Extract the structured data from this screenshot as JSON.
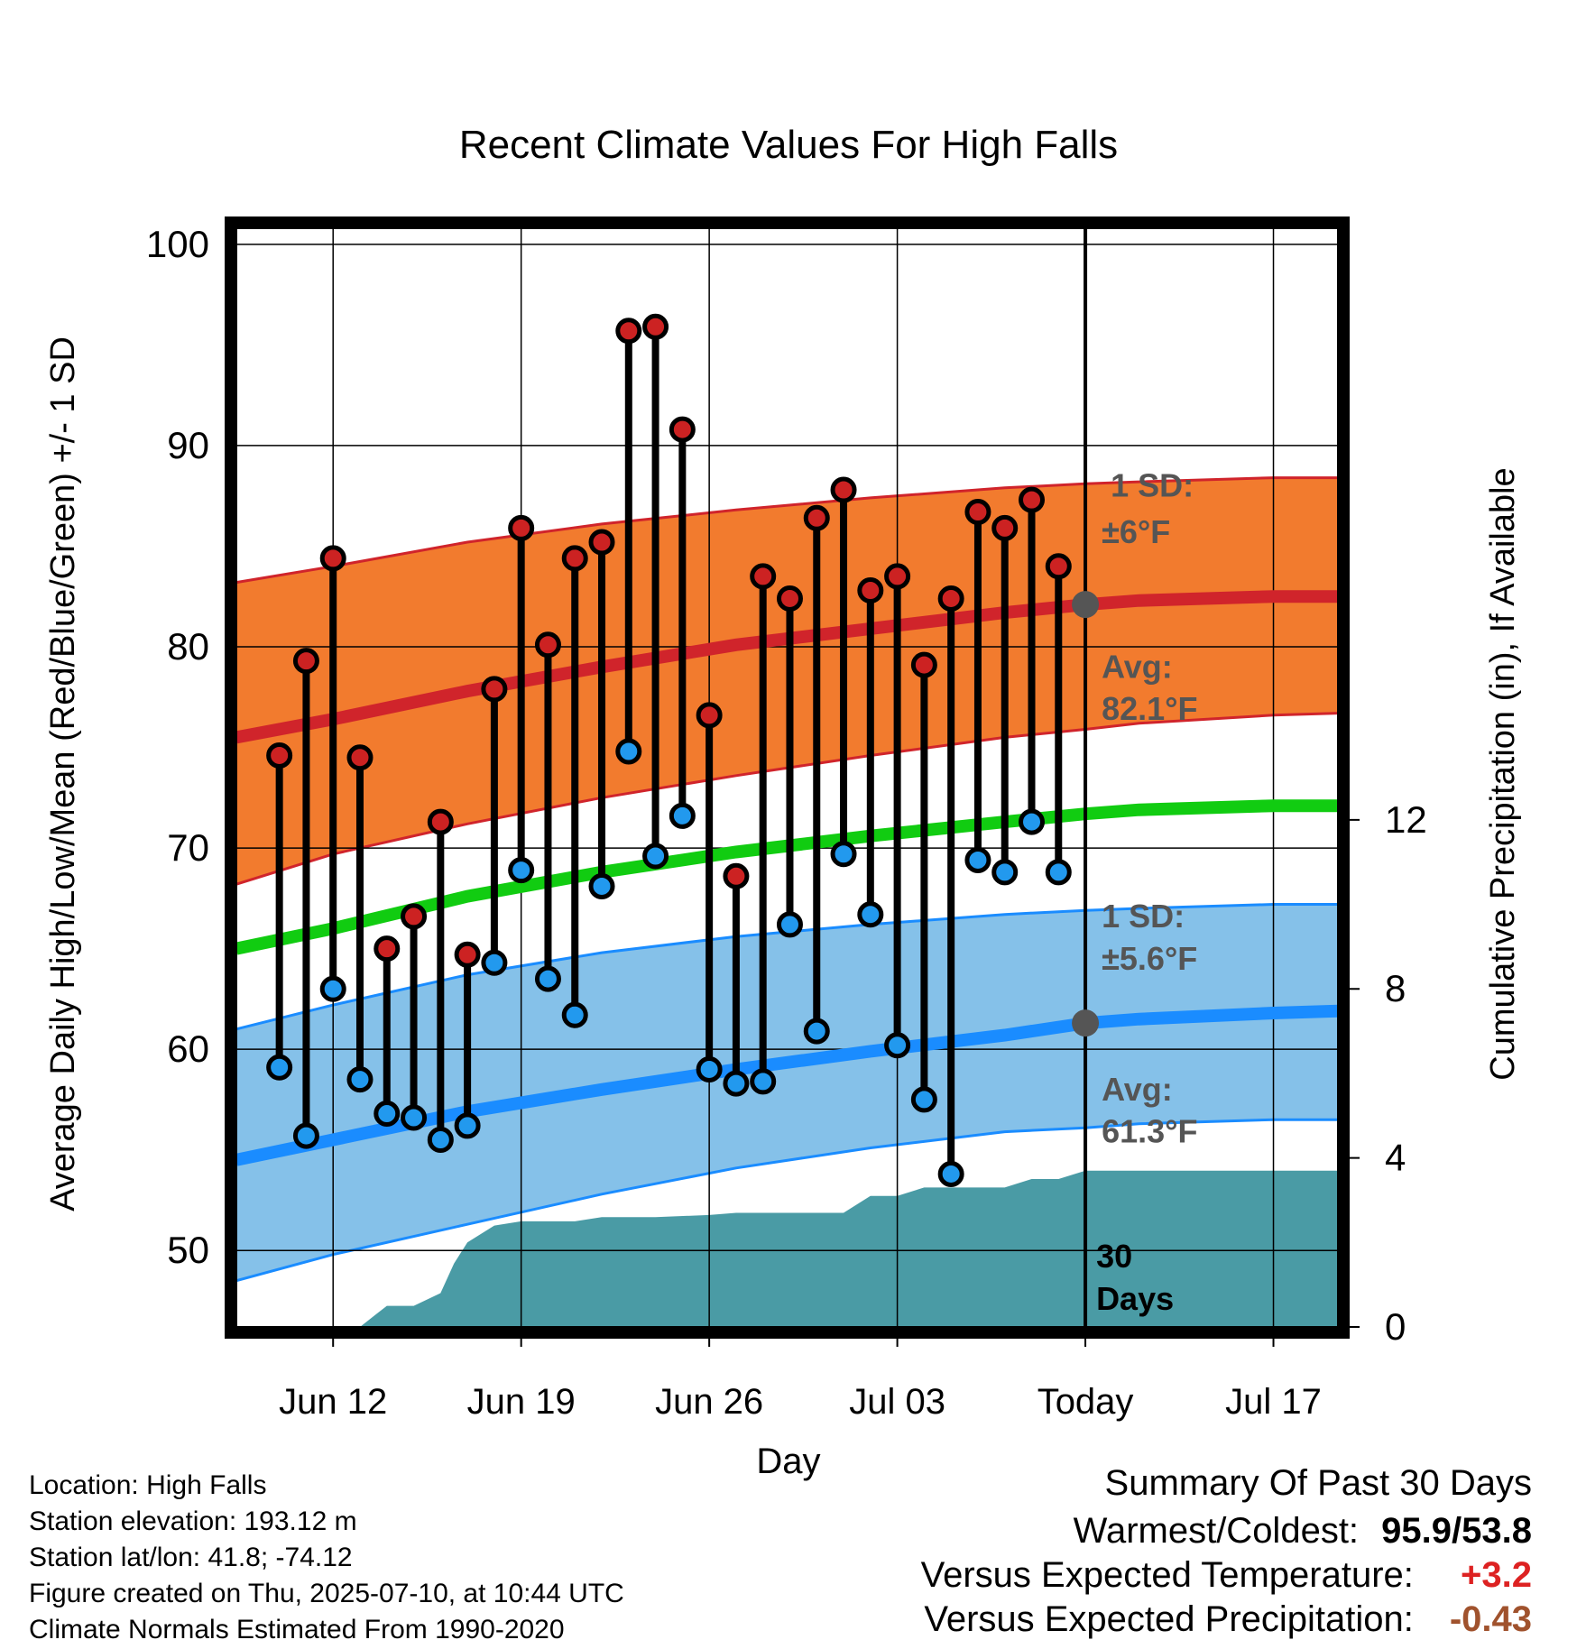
{
  "chart_data": {
    "type": "line",
    "title": "Recent Climate Values For High Falls",
    "xlabel": "Day",
    "ylabel": "Average Daily High/Low/Mean (Red/Blue/Green) +/- 1 SD",
    "y2label": "Cumulative Precipitation (in), If Available",
    "ylim": [
      46.2,
      100.8
    ],
    "y2lim": [
      0,
      26
    ],
    "xlim": [
      -3.6,
      37.4
    ],
    "yticks": [
      50,
      60,
      70,
      80,
      90,
      100
    ],
    "y2ticks": [
      0,
      4,
      8,
      12
    ],
    "xticks": [
      {
        "x": 0,
        "label": "Jun 12"
      },
      {
        "x": 7,
        "label": "Jun 19"
      },
      {
        "x": 14,
        "label": "Jun 26"
      },
      {
        "x": 21,
        "label": "Jul 03"
      },
      {
        "x": 28,
        "label": "Today"
      },
      {
        "x": 35,
        "label": "Jul 17"
      }
    ],
    "grid": true,
    "today_x": 28,
    "today_label": "30 Days",
    "days": [
      -2,
      -1,
      0,
      1,
      2,
      3,
      4,
      5,
      6,
      7,
      8,
      9,
      10,
      11,
      12,
      13,
      14,
      15,
      16,
      17,
      18,
      19,
      20,
      21,
      22,
      23,
      24,
      25,
      26,
      27
    ],
    "highs": [
      74.6,
      79.3,
      84.4,
      74.5,
      65.0,
      66.6,
      71.3,
      64.7,
      77.9,
      85.9,
      80.1,
      84.4,
      85.2,
      95.7,
      95.9,
      90.8,
      76.6,
      68.6,
      83.5,
      82.4,
      86.4,
      87.8,
      82.8,
      83.5,
      79.1,
      82.4,
      86.7,
      85.9,
      87.3,
      84.0
    ],
    "lows": [
      59.1,
      55.7,
      63.0,
      58.5,
      56.8,
      56.6,
      55.5,
      56.2,
      64.3,
      68.9,
      63.5,
      61.7,
      68.1,
      74.8,
      69.6,
      71.6,
      59.0,
      58.3,
      58.4,
      66.2,
      60.9,
      69.7,
      66.7,
      60.2,
      57.5,
      53.8,
      69.4,
      68.8,
      71.3,
      68.8
    ],
    "normals": {
      "x": [
        -3.6,
        0,
        5,
        10,
        15,
        20,
        25,
        28,
        30,
        35,
        37.4
      ],
      "high_avg": [
        75.5,
        76.4,
        77.8,
        79.0,
        80.1,
        80.9,
        81.7,
        82.1,
        82.3,
        82.5,
        82.5
      ],
      "high_plus_sd": [
        83.2,
        84.0,
        85.2,
        86.1,
        86.8,
        87.4,
        87.9,
        88.1,
        88.2,
        88.4,
        88.4
      ],
      "high_minus_sd": [
        68.2,
        69.7,
        71.2,
        72.5,
        73.6,
        74.6,
        75.5,
        75.9,
        76.2,
        76.6,
        76.7
      ],
      "mean": [
        65.0,
        66.0,
        67.6,
        68.8,
        69.8,
        70.6,
        71.3,
        71.7,
        71.9,
        72.1,
        72.1
      ],
      "low_avg": [
        54.5,
        55.5,
        56.9,
        58.0,
        59.0,
        59.9,
        60.7,
        61.3,
        61.5,
        61.8,
        61.9
      ],
      "low_plus_sd": [
        61.0,
        62.2,
        63.7,
        64.8,
        65.6,
        66.2,
        66.7,
        66.9,
        67.0,
        67.2,
        67.2
      ],
      "low_minus_sd": [
        48.5,
        49.8,
        51.3,
        52.8,
        54.1,
        55.1,
        55.9,
        56.1,
        56.3,
        56.5,
        56.5
      ],
      "high_sd_label": "1 SD:",
      "high_sd_value": "±6°F",
      "high_avg_label": "Avg:",
      "high_avg_value": "82.1°F",
      "low_sd_label": "1 SD:",
      "low_sd_value": "±5.6°F",
      "low_avg_label": "Avg:",
      "low_avg_value": "61.3°F"
    },
    "precip_cumulative": {
      "x": [
        -3.6,
        1.0,
        1.6,
        2.0,
        3.0,
        4.0,
        4.5,
        5.0,
        6.0,
        7.0,
        9.0,
        10.0,
        12.0,
        14.0,
        15.0,
        17.0,
        19.0,
        20.0,
        21.0,
        22.0,
        23.0,
        24.0,
        25.0,
        26.0,
        27.0,
        28.0,
        37.4
      ],
      "y": [
        0,
        0,
        0.3,
        0.5,
        0.5,
        0.8,
        1.5,
        2.0,
        2.4,
        2.5,
        2.5,
        2.6,
        2.6,
        2.65,
        2.7,
        2.7,
        2.7,
        3.1,
        3.1,
        3.3,
        3.3,
        3.3,
        3.3,
        3.5,
        3.5,
        3.7,
        3.7
      ]
    },
    "colors": {
      "high_band": "#f27b2e",
      "high_line": "#d0242b",
      "mean_line": "#11cc11",
      "low_band": "#85c1e9",
      "low_line": "#1a8cff",
      "precip": "#4a9ba5",
      "high_marker": "#cc2222",
      "low_marker": "#2299ee",
      "avg_marker": "#555555",
      "sd_text": "#555555"
    }
  },
  "footer": {
    "location": "Location: High Falls",
    "elevation": "Station elevation: 193.12 m",
    "latlon": "Station lat/lon: 41.8; -74.12",
    "created": "Figure created on Thu, 2025-07-10, at 10:44 UTC",
    "normals": "Climate Normals Estimated From 1990-2020"
  },
  "summary": {
    "title": "Summary Of Past 30 Days",
    "warm_cold_label": "Warmest/Coldest:",
    "warm_cold_value": "95.9/53.8",
    "temp_label": "Versus Expected Temperature:",
    "temp_value": "+3.2",
    "temp_color": "#dd2222",
    "precip_label": "Versus Expected Precipitation:",
    "precip_value": "-0.43",
    "precip_color": "#a0522d"
  }
}
